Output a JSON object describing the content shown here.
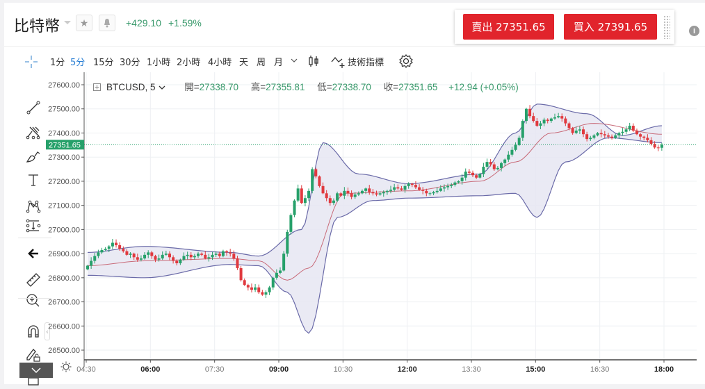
{
  "header": {
    "title": "比特幣",
    "change_abs": "+429.10",
    "change_pct": "+1.59%",
    "favorite_icon": "star-icon",
    "alert_icon": "bell-icon",
    "info_icon": "i"
  },
  "trade": {
    "sell_label": "賣出 27351.65",
    "buy_label": "買入 27391.65",
    "sell_color": "#e1242c",
    "buy_color": "#e1242c"
  },
  "toolbar": {
    "timeframes": [
      {
        "label": "1分",
        "active": false
      },
      {
        "label": "5分",
        "active": true
      },
      {
        "label": "15分",
        "active": false
      },
      {
        "label": "30分",
        "active": false
      },
      {
        "label": "1小時",
        "active": false
      },
      {
        "label": "2小時",
        "active": false
      },
      {
        "label": "4小時",
        "active": false
      },
      {
        "label": "天",
        "active": false
      },
      {
        "label": "周",
        "active": false
      },
      {
        "label": "月",
        "active": false
      }
    ],
    "more_icon": "chevron-down-icon",
    "chart_type_icon": "candlestick-icon",
    "indicators_label": "技術指標",
    "settings_icon": "gear-icon"
  },
  "left_tools": [
    "crosshair-icon",
    "trend-line-icon",
    "pitchfork-icon",
    "brush-icon",
    "text-icon",
    "pattern-icon",
    "measure-projection-icon",
    "arrow-left-icon",
    "ruler-icon",
    "zoom-in-icon",
    "magnet-icon",
    "lock-drawing-icon",
    "lock-icon"
  ],
  "legend": {
    "symbol": "BTCUSD, 5",
    "open_label": "開=",
    "open": "27338.70",
    "high_label": "高=",
    "high": "27355.81",
    "low_label": "低=",
    "low": "27338.70",
    "close_label": "收=",
    "close": "27351.65",
    "change": "+12.94 (+0.05%)"
  },
  "colors": {
    "up": "#26a06a",
    "down": "#e0393e",
    "band_fill": "#e6e6f2",
    "band_line": "#6a6aa8",
    "basis_line": "#c86a78",
    "price_tag": "#26a06a",
    "accent_active": "#2a7fd4"
  },
  "chart_data": {
    "type": "candlestick",
    "title": "BTCUSD, 5",
    "xlabel": "",
    "ylabel": "",
    "ylim": [
      26470,
      27640
    ],
    "y_ticks": [
      "27600.00",
      "27500.00",
      "27400.00",
      "27300.00",
      "27200.00",
      "27100.00",
      "27000.00",
      "26900.00",
      "26800.00",
      "26700.00",
      "26600.00",
      "26500.00"
    ],
    "x_ticks": [
      {
        "label": "04:30",
        "bold": false
      },
      {
        "label": "06:00",
        "bold": true
      },
      {
        "label": "07:30",
        "bold": false
      },
      {
        "label": "09:00",
        "bold": true
      },
      {
        "label": "10:30",
        "bold": false
      },
      {
        "label": "12:00",
        "bold": true
      },
      {
        "label": "13:30",
        "bold": false
      },
      {
        "label": "15:00",
        "bold": true
      },
      {
        "label": "16:30",
        "bold": false
      },
      {
        "label": "18:00",
        "bold": true
      }
    ],
    "last_price": 27351.65,
    "last_price_label": "27351.65",
    "interval_minutes": 5,
    "start_time": "04:30",
    "indicator": "Bollinger Bands (20, 2)",
    "closes": [
      26850,
      26870,
      26890,
      26905,
      26915,
      26920,
      26930,
      26945,
      26935,
      26920,
      26910,
      26895,
      26900,
      26885,
      26875,
      26880,
      26895,
      26905,
      26890,
      26875,
      26880,
      26895,
      26900,
      26885,
      26870,
      26860,
      26875,
      26890,
      26895,
      26885,
      26890,
      26900,
      26895,
      26880,
      26885,
      26895,
      26900,
      26890,
      26910,
      26905,
      26900,
      26880,
      26840,
      26790,
      26770,
      26760,
      26750,
      26760,
      26740,
      26730,
      26740,
      26760,
      26800,
      26820,
      26830,
      26900,
      26990,
      27060,
      27120,
      27170,
      27110,
      27130,
      27160,
      27250,
      27220,
      27180,
      27150,
      27130,
      27110,
      27120,
      27150,
      27140,
      27160,
      27150,
      27135,
      27145,
      27150,
      27160,
      27170,
      27155,
      27150,
      27145,
      27150,
      27155,
      27160,
      27165,
      27175,
      27170,
      27165,
      27180,
      27190,
      27185,
      27175,
      27165,
      27160,
      27150,
      27150,
      27155,
      27160,
      27170,
      27175,
      27180,
      27185,
      27195,
      27200,
      27215,
      27240,
      27235,
      27225,
      27215,
      27230,
      27260,
      27280,
      27270,
      27250,
      27255,
      27275,
      27290,
      27310,
      27330,
      27350,
      27380,
      27450,
      27500,
      27470,
      27450,
      27430,
      27440,
      27455,
      27450,
      27460,
      27465,
      27470,
      27460,
      27440,
      27420,
      27400,
      27410,
      27415,
      27395,
      27375,
      27380,
      27390,
      27400,
      27395,
      27390,
      27385,
      27380,
      27390,
      27400,
      27405,
      27415,
      27430,
      27410,
      27395,
      27385,
      27380,
      27370,
      27355,
      27340,
      27338.7,
      27351.65
    ],
    "bollinger": {
      "upper_points": [
        [
          0,
          26905
        ],
        [
          16,
          26930
        ],
        [
          40,
          26905
        ],
        [
          48,
          26890
        ],
        [
          60,
          27000
        ],
        [
          66,
          27360
        ],
        [
          76,
          27230
        ],
        [
          90,
          27190
        ],
        [
          110,
          27230
        ],
        [
          120,
          27400
        ],
        [
          126,
          27520
        ],
        [
          140,
          27480
        ],
        [
          150,
          27390
        ],
        [
          161,
          27430
        ]
      ],
      "lower_points": [
        [
          0,
          26810
        ],
        [
          16,
          26800
        ],
        [
          40,
          26855
        ],
        [
          48,
          26850
        ],
        [
          56,
          26740
        ],
        [
          62,
          26570
        ],
        [
          70,
          27050
        ],
        [
          80,
          27120
        ],
        [
          90,
          27130
        ],
        [
          110,
          27140
        ],
        [
          120,
          27150
        ],
        [
          126,
          27050
        ],
        [
          134,
          27280
        ],
        [
          146,
          27380
        ],
        [
          161,
          27360
        ]
      ],
      "basis_points": [
        [
          0,
          26850
        ],
        [
          16,
          26870
        ],
        [
          40,
          26880
        ],
        [
          48,
          26870
        ],
        [
          56,
          26790
        ],
        [
          62,
          26840
        ],
        [
          72,
          27150
        ],
        [
          90,
          27160
        ],
        [
          110,
          27200
        ],
        [
          120,
          27280
        ],
        [
          130,
          27400
        ],
        [
          142,
          27440
        ],
        [
          161,
          27395
        ]
      ]
    }
  }
}
